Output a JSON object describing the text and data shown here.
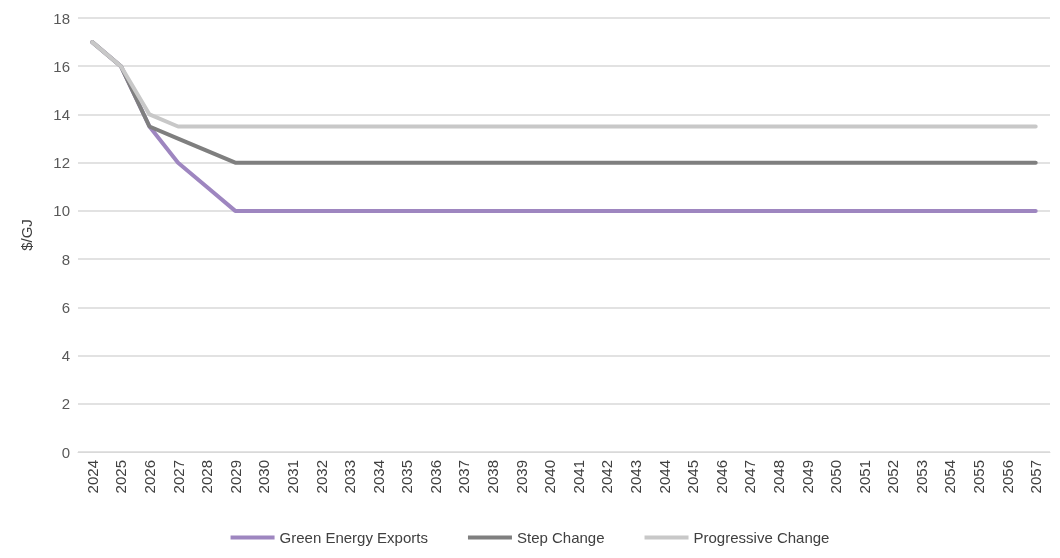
{
  "chart_data": {
    "type": "line",
    "ylabel": "$/GJ",
    "categories": [
      "2024",
      "2025",
      "2026",
      "2027",
      "2028",
      "2029",
      "2030",
      "2031",
      "2032",
      "2033",
      "2034",
      "2035",
      "2036",
      "2037",
      "2038",
      "2039",
      "2040",
      "2041",
      "2042",
      "2043",
      "2044",
      "2045",
      "2046",
      "2047",
      "2048",
      "2049",
      "2050",
      "2051",
      "2052",
      "2053",
      "2054",
      "2055",
      "2056",
      "2057"
    ],
    "series": [
      {
        "name": "Green Energy Exports",
        "color": "#9e86c0",
        "values": [
          17,
          16,
          13.5,
          12,
          11,
          10,
          10,
          10,
          10,
          10,
          10,
          10,
          10,
          10,
          10,
          10,
          10,
          10,
          10,
          10,
          10,
          10,
          10,
          10,
          10,
          10,
          10,
          10,
          10,
          10,
          10,
          10,
          10,
          10
        ]
      },
      {
        "name": "Step Change",
        "color": "#7f7f7f",
        "values": [
          17,
          16,
          13.5,
          13,
          12.5,
          12,
          12,
          12,
          12,
          12,
          12,
          12,
          12,
          12,
          12,
          12,
          12,
          12,
          12,
          12,
          12,
          12,
          12,
          12,
          12,
          12,
          12,
          12,
          12,
          12,
          12,
          12,
          12,
          12
        ]
      },
      {
        "name": "Progressive Change",
        "color": "#c8c8c8",
        "values": [
          17,
          16,
          14,
          13.5,
          13.5,
          13.5,
          13.5,
          13.5,
          13.5,
          13.5,
          13.5,
          13.5,
          13.5,
          13.5,
          13.5,
          13.5,
          13.5,
          13.5,
          13.5,
          13.5,
          13.5,
          13.5,
          13.5,
          13.5,
          13.5,
          13.5,
          13.5,
          13.5,
          13.5,
          13.5,
          13.5,
          13.5,
          13.5,
          13.5
        ]
      }
    ],
    "ylim": [
      0,
      18
    ],
    "yticks": [
      0,
      2,
      4,
      6,
      8,
      10,
      12,
      14,
      16,
      18
    ],
    "grid": "y",
    "legend": "bottom",
    "marker": "none",
    "line_style": "solid"
  }
}
